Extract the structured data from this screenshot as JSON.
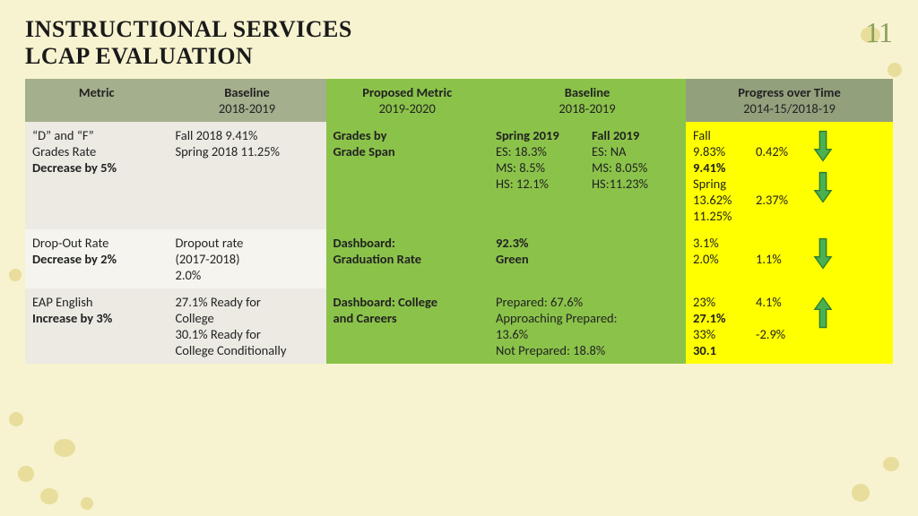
{
  "page": {
    "title_line1": "INSTRUCTIONAL SERVICES",
    "title_line2": "LCAP EVALUATION",
    "number": "11"
  },
  "colors": {
    "background": "#f7f3d0",
    "spot": "#e8dd9a",
    "header_muted": "#a4af8d",
    "header_green": "#8bc34a",
    "header_right": "#93a07c",
    "cell_odd": "#eceae3",
    "cell_even": "#f5f4ee",
    "cell_green": "#8bc34a",
    "cell_yellow": "#ffff00",
    "arrow_fill": "#4caf50",
    "arrow_stroke": "#2e7d32"
  },
  "headers": {
    "c0": "Metric",
    "c1_l1": "Baseline",
    "c1_l2": "2018-2019",
    "c2_l1": "Proposed Metric",
    "c2_l2": "2019-2020",
    "c3_l1": "Baseline",
    "c3_l2": "2018-2019",
    "c4_l1": "Progress over Time",
    "c4_l2": "2014-15/2018-19"
  },
  "rows": [
    {
      "metric_l1": "“D” and “F”",
      "metric_l2": "Grades Rate",
      "metric_bold": "Decrease by 5%",
      "baseline1_l1": "Fall 2018 9.41%",
      "baseline1_l2": "Spring 2018 11.25%",
      "proposed_l1": "Grades by",
      "proposed_l2": "Grade Span",
      "baseline2_split": true,
      "b2_left_head": "Spring 2019",
      "b2_left_1": "ES: 18.3%",
      "b2_left_2": "MS: 8.5%",
      "b2_left_3": "HS:  12.1%",
      "b2_right_head": "Fall 2019",
      "b2_right_1": "ES: NA",
      "b2_right_2": "MS: 8.05%",
      "b2_right_3": "HS:11.23%",
      "prog_left": [
        "Fall",
        "9.83%",
        "9.41%",
        "Spring",
        "13.62%",
        "11.25%"
      ],
      "prog_left_bold": [
        false,
        false,
        true,
        false,
        false,
        false
      ],
      "prog_mid": [
        "",
        "0.42%",
        "",
        "",
        "2.37%",
        ""
      ],
      "arrows": [
        "down",
        "down"
      ]
    },
    {
      "metric_l1": "Drop-Out Rate",
      "metric_bold": "Decrease by 2%",
      "baseline1_l1": "Dropout rate",
      "baseline1_l2": "(2017-2018)",
      "baseline1_l3": "2.0%",
      "proposed_l1": "Dashboard:",
      "proposed_l2": "Graduation Rate",
      "baseline2_bold": "92.3%",
      "baseline2_l2": "Green",
      "prog_left": [
        "3.1%",
        "2.0%"
      ],
      "prog_left_bold": [
        false,
        false
      ],
      "prog_mid": [
        "",
        "1.1%"
      ],
      "arrows": [
        "down"
      ]
    },
    {
      "metric_l1": "EAP English",
      "metric_bold": "Increase by 3%",
      "baseline1_l1": "27.1% Ready for",
      "baseline1_l2": "College",
      "baseline1_l3": "30.1% Ready for",
      "baseline1_l4": "College Conditionally",
      "proposed_l1": "Dashboard: College",
      "proposed_l2": "and Careers",
      "baseline2_l1": "Prepared: 67.6%",
      "baseline2_l2": "Approaching Prepared:",
      "baseline2_l3": "13.6%",
      "baseline2_l4": "Not Prepared: 18.8%",
      "prog_left": [
        "23%",
        "27.1%",
        "33%",
        "30.1"
      ],
      "prog_left_bold": [
        false,
        true,
        false,
        true
      ],
      "prog_mid": [
        "4.1%",
        "",
        "-2.9%",
        ""
      ],
      "arrows": [
        "up"
      ]
    }
  ]
}
